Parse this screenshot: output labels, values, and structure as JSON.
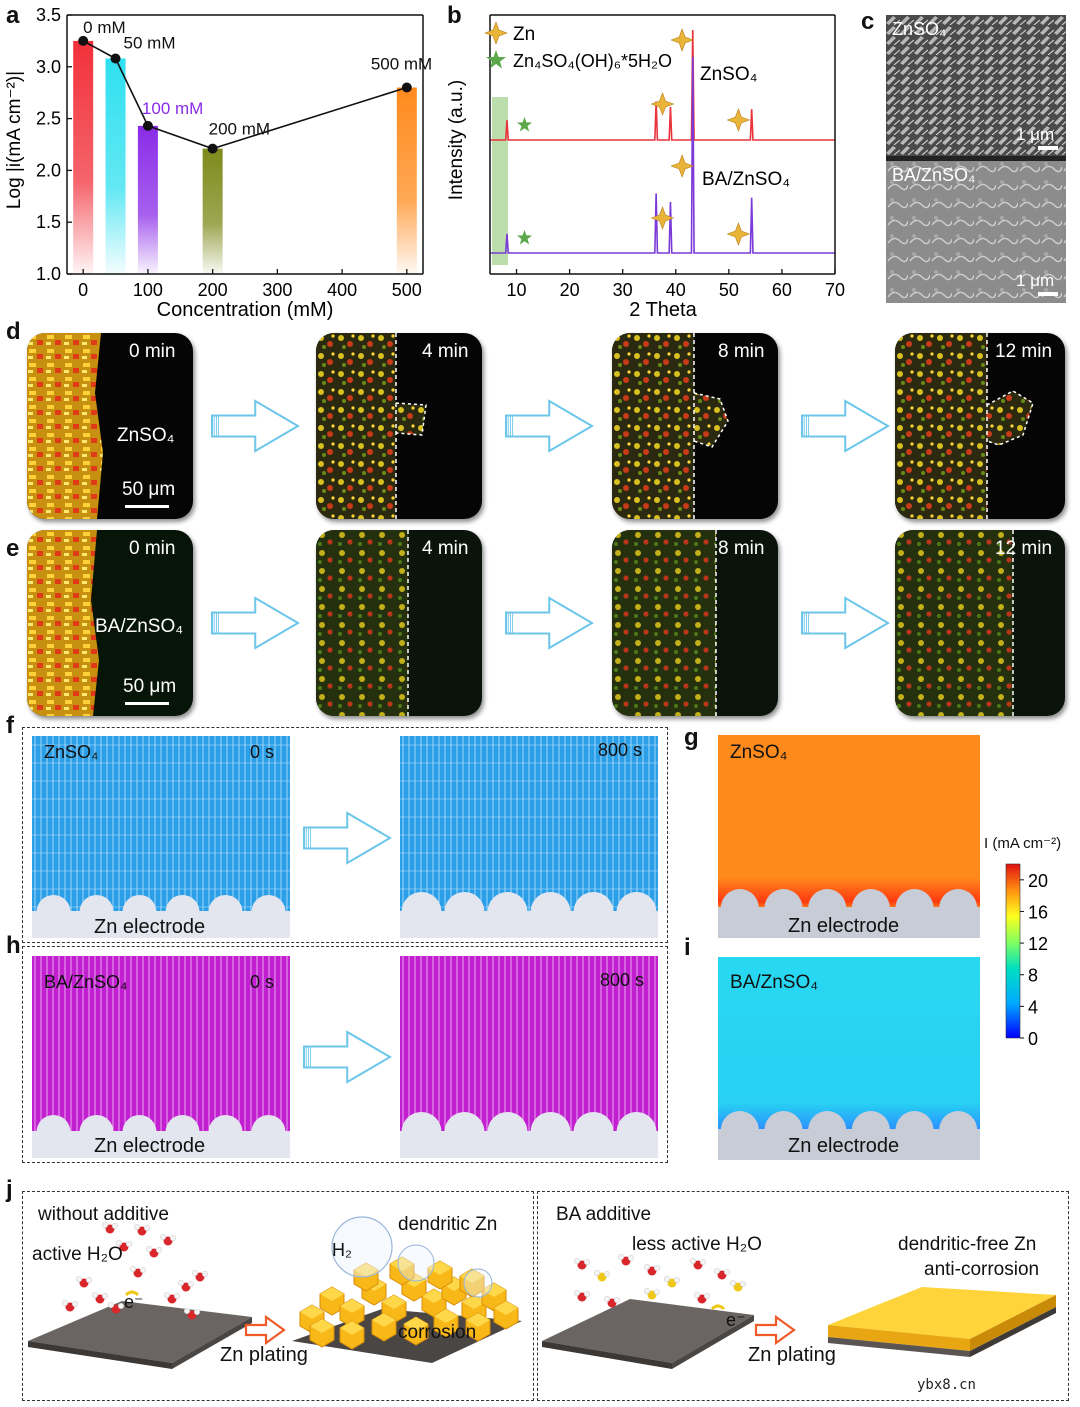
{
  "panels": {
    "a": "a",
    "b": "b",
    "c": "c",
    "d": "d",
    "e": "e",
    "f": "f",
    "g": "g",
    "h": "h",
    "i": "i",
    "j": "j"
  },
  "chart_data": [
    {
      "type": "bar",
      "id": "a",
      "categories": [
        "0 mM",
        "50 mM",
        "100 mM",
        "200 mM",
        "500 mM"
      ],
      "x": [
        0,
        50,
        100,
        200,
        500
      ],
      "values": [
        3.25,
        3.08,
        2.43,
        2.21,
        2.8
      ],
      "bar_colors": [
        "#f2303a",
        "#2fe0f0",
        "#8a2be8",
        "#7d8a1a",
        "#ff8a1c"
      ],
      "label_colors": [
        "#111111",
        "#111111",
        "#8a2be8",
        "#111111",
        "#111111"
      ],
      "xlabel": "Concentration (mM)",
      "ylabel": "Log |i(mA cm⁻²)|",
      "xlim": [
        -25,
        525
      ],
      "ylim": [
        1.0,
        3.5
      ],
      "xticks": [
        0,
        100,
        200,
        300,
        400,
        500
      ],
      "yticks": [
        1.0,
        1.5,
        2.0,
        2.5,
        3.0,
        3.5
      ]
    },
    {
      "type": "line",
      "id": "b",
      "xlabel": "2 Theta",
      "ylabel": "Intensity (a.u.)",
      "xlim": [
        5,
        70
      ],
      "xticks": [
        10,
        20,
        30,
        40,
        50,
        60,
        70
      ],
      "legend": [
        "Zn",
        "Zn₄SO₄(OH)₆*5H₂O"
      ],
      "series": [
        {
          "name": "ZnSO₄",
          "color": "#e8333b",
          "peaks": [
            {
              "x": 8.2,
              "h": 0.18
            },
            {
              "x": 36.3,
              "h": 0.35
            },
            {
              "x": 39.0,
              "h": 0.3
            },
            {
              "x": 43.2,
              "h": 1.0
            },
            {
              "x": 54.3,
              "h": 0.28
            }
          ]
        },
        {
          "name": "BA/ZnSO₄",
          "color": "#7a3ad8",
          "peaks": [
            {
              "x": 8.2,
              "h": 0.09
            },
            {
              "x": 36.3,
              "h": 0.28
            },
            {
              "x": 39.0,
              "h": 0.24
            },
            {
              "x": 43.2,
              "h": 0.92
            },
            {
              "x": 54.3,
              "h": 0.26
            }
          ]
        }
      ],
      "annotations": {
        "highlight_range": [
          6.6,
          9.6
        ],
        "zn_peaks": [
          37.5,
          41.2,
          51.8
        ],
        "basic_salt_peak": 11.5
      }
    },
    {
      "type": "heatmap",
      "id": "g_i_colorbar",
      "label": "I (mA cm⁻²)",
      "ticks": [
        0,
        4,
        8,
        12,
        16,
        20
      ],
      "range": [
        0,
        22
      ]
    }
  ],
  "panel_c": {
    "top_label": "ZnSO₄",
    "bottom_label": "BA/ZnSO₄",
    "scale": "1 μm"
  },
  "panel_d": {
    "electrolyte": "ZnSO₄",
    "scale": "50 μm",
    "times": [
      "0 min",
      "4 min",
      "8 min",
      "12 min"
    ]
  },
  "panel_e": {
    "electrolyte": "BA/ZnSO₄",
    "scale": "50 μm",
    "times": [
      "0 min",
      "4 min",
      "8 min",
      "12 min"
    ]
  },
  "panel_f": {
    "electrolyte": "ZnSO₄",
    "t0": "0 s",
    "t1": "800 s",
    "electrode": "Zn electrode"
  },
  "panel_h": {
    "electrolyte": "BA/ZnSO₄",
    "t0": "0 s",
    "t1": "800 s",
    "electrode": "Zn electrode"
  },
  "panel_g": {
    "electrolyte": "ZnSO₄",
    "electrode": "Zn electrode"
  },
  "panel_i": {
    "electrolyte": "BA/ZnSO₄",
    "electrode": "Zn electrode"
  },
  "panel_j": {
    "left_title": "without additive",
    "left_water": "active H₂O",
    "electron": "e⁻",
    "plating": "Zn plating",
    "dendritic": "dendritic Zn",
    "h2": "H₂",
    "corrosion": "corrosion",
    "right_title": "BA additive",
    "right_water": "less active H₂O",
    "dendrite_free": "dendritic-free Zn",
    "anti_corrosion": "anti-corrosion"
  },
  "watermark": "ybx8.cn",
  "colors": {
    "zn_blue": "#2a9fe8",
    "ba_magenta": "#c21fd0",
    "orange_field": "#ff8a1c",
    "cyan_field": "#28d8f2",
    "arrow_blue": "#6cc6ea",
    "arrow_red": "#f05a28",
    "title_blue": "#29a8e0"
  }
}
